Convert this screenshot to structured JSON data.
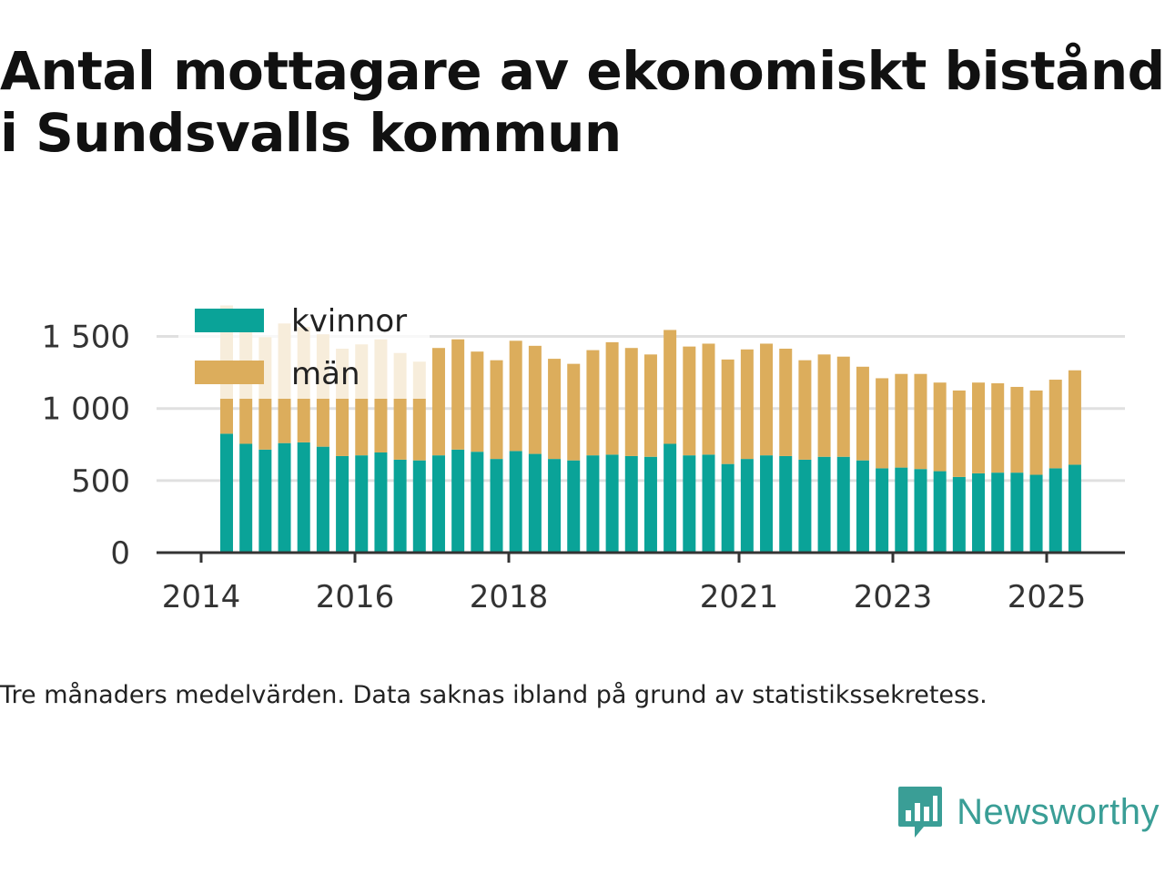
{
  "title_line1": "Antal mottagare av ekonomiskt bistånd",
  "title_line2": "i Sundsvalls kommun",
  "caption": "Tre månaders medelvärden. Data saknas ibland på grund av statistikssekretess.",
  "brand": {
    "name": "Newsworthy",
    "color": "#3a9e96"
  },
  "colors": {
    "kvinnor": "#0aa398",
    "man": "#dcad5c",
    "grid": "#e0e0e0",
    "axis": "#333333",
    "tick_text": "#333333"
  },
  "chart_data": {
    "type": "bar",
    "stacked": true,
    "title": "Antal mottagare av ekonomiskt bistånd i Sundsvalls kommun",
    "x_tick_labels": [
      "2014",
      "2016",
      "2018",
      "2021",
      "2023",
      "2025"
    ],
    "y_ticks": [
      0,
      500,
      1000,
      1500
    ],
    "y_tick_labels": [
      "0",
      "500",
      "1 000",
      "1 500"
    ],
    "ylim": [
      0,
      1750
    ],
    "grid": true,
    "legend_position": "top-left",
    "series": [
      {
        "name": "kvinnor",
        "values": [
          825,
          755,
          715,
          760,
          765,
          735,
          670,
          675,
          695,
          645,
          640,
          675,
          715,
          700,
          650,
          705,
          685,
          650,
          640,
          675,
          680,
          670,
          665,
          755,
          675,
          680,
          615,
          650,
          675,
          670,
          645,
          665,
          665,
          640,
          585,
          590,
          580,
          565,
          525,
          550,
          555,
          555,
          540,
          585,
          610
        ]
      },
      {
        "name": "män",
        "values": [
          890,
          880,
          780,
          830,
          800,
          780,
          745,
          770,
          785,
          740,
          685,
          745,
          765,
          695,
          685,
          765,
          750,
          695,
          670,
          730,
          780,
          750,
          710,
          790,
          755,
          770,
          725,
          760,
          775,
          745,
          690,
          710,
          695,
          650,
          625,
          650,
          660,
          615,
          600,
          630,
          620,
          595,
          585,
          615,
          655
        ]
      }
    ],
    "legend": [
      "kvinnor",
      "män"
    ]
  }
}
